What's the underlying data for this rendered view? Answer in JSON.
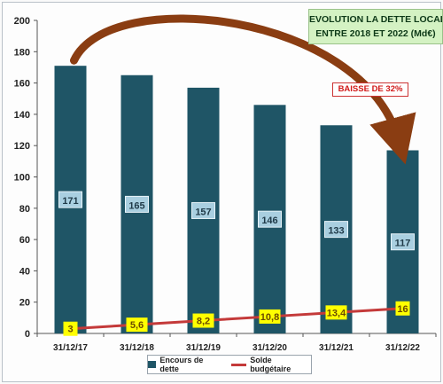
{
  "chart_data": {
    "type": "bar",
    "title_lines": [
      "EVOLUTION LA DETTE LOCALE",
      "ENTRE 2018 ET 2022 (Md€)"
    ],
    "categories": [
      "31/12/17",
      "31/12/18",
      "31/12/19",
      "31/12/20",
      "31/12/21",
      "31/12/22"
    ],
    "series": [
      {
        "name": "Encours de dette",
        "kind": "bar",
        "color": "#1f5566",
        "values": [
          171,
          165,
          157,
          146,
          133,
          117
        ],
        "labels": [
          "171",
          "165",
          "157",
          "146",
          "133",
          "117"
        ]
      },
      {
        "name": "Solde budgétaire",
        "kind": "line",
        "color": "#c43a3a",
        "values": [
          3,
          5.6,
          8.2,
          10.8,
          13.4,
          16
        ],
        "labels": [
          "3",
          "5,6",
          "8,2",
          "10,8",
          "13,4",
          "16"
        ]
      }
    ],
    "yticks": [
      "0",
      "20",
      "40",
      "60",
      "80",
      "100",
      "120",
      "140",
      "160",
      "180",
      "200"
    ],
    "ylim": [
      0,
      200
    ],
    "grid": false,
    "legend_position": "bottom",
    "annotation": "BAISSE DE 32%",
    "colors": {
      "title_bg": "#d4f2c3",
      "bar_label_bg": "#a9cfe0",
      "line_label_bg": "#ffff00",
      "arrow": "#8a3d12",
      "annotation_text": "#d11818"
    }
  }
}
